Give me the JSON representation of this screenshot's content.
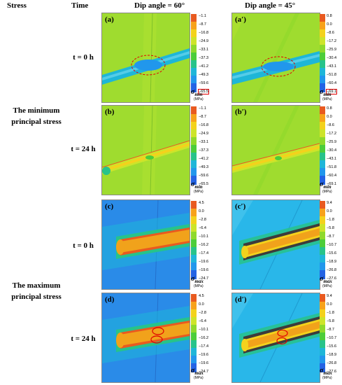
{
  "headers": {
    "stress": "Stress",
    "time": "Time",
    "dip60": "Dip angle = 60°",
    "dip45": "Dip angle = 45°"
  },
  "groups": {
    "min": "The minimum principal stress",
    "max": "The maximum principal stress"
  },
  "times": {
    "t0": "t = 0 h",
    "t24": "t = 24 h"
  },
  "panel_labels": {
    "a": "(a)",
    "a2": "(a′)",
    "b": "(b)",
    "b2": "(b′)",
    "c": "(c)",
    "c2": "(c′)",
    "d": "(d)",
    "d2": "(d′)"
  },
  "colorbars": {
    "min60": {
      "ticks": [
        "−1.1",
        "−8.7",
        "−16.8",
        "−24.9",
        "−33.1",
        "−37.3",
        "−41.2",
        "−49.3",
        "−59.6",
        "−65.5"
      ],
      "symbol": "σ",
      "sub": "min",
      "unit": "(MPa)"
    },
    "min45": {
      "ticks": [
        "0.8",
        "0.0",
        "−8.6",
        "−17.2",
        "−25.9",
        "−30.4",
        "−43.1",
        "−51.8",
        "−60.4",
        "−69.1"
      ],
      "symbol": "σ",
      "sub": "min",
      "unit": "(MPa)"
    },
    "max60": {
      "ticks": [
        "4.5",
        "0.0",
        "−2.8",
        "−6.4",
        "−10.1",
        "−16.2",
        "−17.4",
        "−19.6",
        "−19.6",
        "−24.7"
      ],
      "symbol": "σ",
      "sub": "max",
      "unit": "(MPa)"
    },
    "max45": {
      "ticks": [
        "9.4",
        "0.0",
        "−1.8",
        "−5.8",
        "−8.7",
        "−10.7",
        "−15.6",
        "−18.9",
        "−26.8",
        "−27.6"
      ],
      "symbol": "σ",
      "sub": "max",
      "unit": "(MPa)"
    }
  },
  "palette": [
    "#e85a20",
    "#f7a21b",
    "#f3d21c",
    "#cde42a",
    "#8fd92c",
    "#4ccd3a",
    "#27c38a",
    "#1eb6d8",
    "#2197ec",
    "#2463e4"
  ],
  "colors": {
    "min_bg": "#9fdc2f",
    "max60_bg": "#2a8be8",
    "max45_bg": "#29b7e9",
    "pipe_orange": "#f1a21b",
    "highlight_red": "#e00000"
  }
}
